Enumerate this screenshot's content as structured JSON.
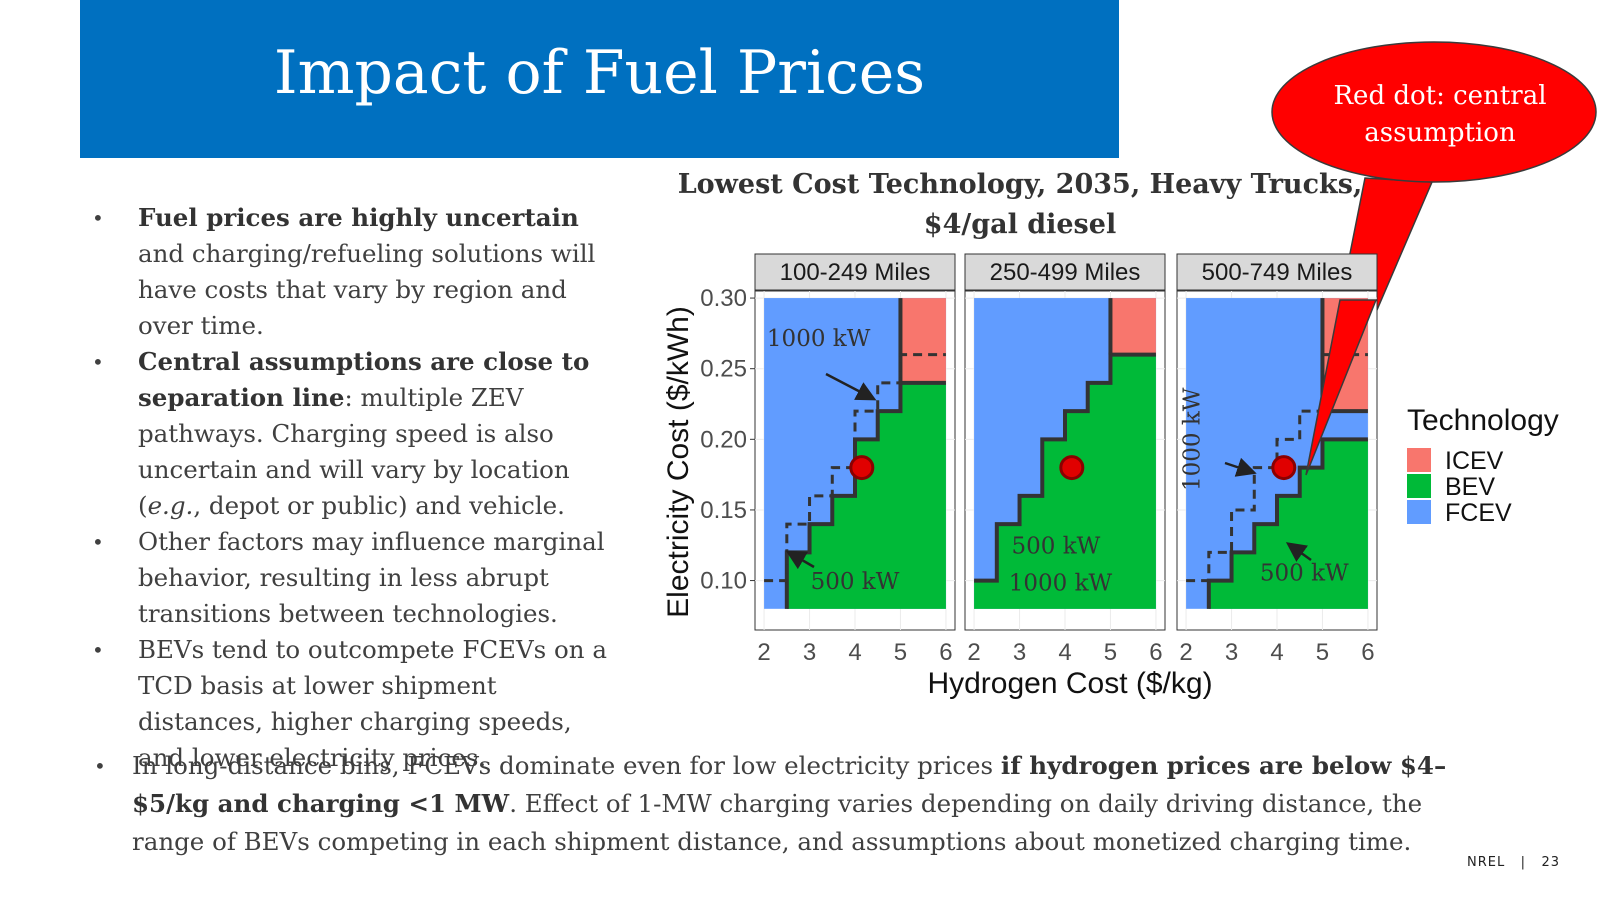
{
  "slide": {
    "title": "Impact of Fuel Prices",
    "footer_org": "NREL",
    "footer_sep": "|",
    "page_number": "23",
    "banner_color": "#0070c0"
  },
  "bullets": [
    {
      "bold": "Fuel prices are highly uncertain",
      "text": " and charging/refueling solutions will have costs that vary by region and over time."
    },
    {
      "bold": "Central assumptions are close to separation line",
      "text": ": multiple ZEV pathways. Charging speed is also uncertain and will vary by location ("
    },
    {
      "bold": "",
      "text": "Other factors may influence marginal behavior, resulting in less abrupt transitions between technologies."
    },
    {
      "bold": "",
      "text": "BEVs tend to outcompete FCEVs on a TCD basis at lower shipment distances, higher charging speeds, and lower electricity prices."
    }
  ],
  "bullet2_italic": "e.g.",
  "bullet2_tail": ", depot or public) and vehicle.",
  "bottom_bullet": {
    "pre": "In long-distance bins, FCEVs dominate even for low electricity prices ",
    "bold1": "if hydrogen prices are below $4–$5/kg and charging <1 MW",
    "post": ". Effect of 1-MW charging varies depending on daily driving distance, the range of BEVs competing in each shipment distance, and assumptions about monetized charging time."
  },
  "callout": {
    "text_line1": "Red dot: central",
    "text_line2": "assumption",
    "fill": "#ff0000"
  },
  "chart_data": {
    "type": "heatmap",
    "title_line1": "Lowest Cost Technology, 2035, Heavy Trucks,",
    "title_line2": "$4/gal diesel",
    "xlabel": "Hydrogen Cost ($/kg)",
    "ylabel": "Electricity Cost ($/kWh)",
    "xlim": [
      1.8,
      6.2
    ],
    "ylim": [
      0.065,
      0.305
    ],
    "x_ticks": [
      2,
      3,
      4,
      5,
      6
    ],
    "y_ticks": [
      0.1,
      0.15,
      0.2,
      0.25,
      0.3
    ],
    "y_tick_labels": [
      "0.10",
      "0.15",
      "0.20",
      "0.25",
      "0.30"
    ],
    "legend": {
      "title": "Technology",
      "entries": [
        {
          "label": "ICEV",
          "color": "#f8766d"
        },
        {
          "label": "BEV",
          "color": "#00ba38"
        },
        {
          "label": "FCEV",
          "color": "#619cff"
        }
      ]
    },
    "central_assumption": {
      "hydrogen": 4.15,
      "electricity": 0.18,
      "color": "#e00000"
    },
    "panels": [
      {
        "label": "100-249 Miles",
        "fcev_bev_boundary": [
          [
            2.5,
            0.08
          ],
          [
            2.5,
            0.12
          ],
          [
            3.0,
            0.12
          ],
          [
            3.0,
            0.14
          ],
          [
            3.5,
            0.14
          ],
          [
            3.5,
            0.16
          ],
          [
            4.0,
            0.16
          ],
          [
            4.0,
            0.2
          ],
          [
            4.5,
            0.2
          ],
          [
            4.5,
            0.22
          ],
          [
            5.0,
            0.22
          ],
          [
            5.0,
            0.24
          ],
          [
            6.0,
            0.24
          ]
        ],
        "icev_boundary": [
          [
            5.0,
            0.3
          ],
          [
            5.0,
            0.24
          ]
        ],
        "dashed_boundary": [
          [
            2.0,
            0.1
          ],
          [
            2.5,
            0.1
          ],
          [
            2.5,
            0.14
          ],
          [
            3.0,
            0.14
          ],
          [
            3.0,
            0.16
          ],
          [
            3.5,
            0.16
          ],
          [
            3.5,
            0.18
          ],
          [
            4.0,
            0.18
          ],
          [
            4.0,
            0.22
          ],
          [
            4.5,
            0.22
          ],
          [
            4.5,
            0.24
          ],
          [
            5.0,
            0.24
          ],
          [
            5.0,
            0.26
          ],
          [
            6.0,
            0.26
          ]
        ],
        "annotations": [
          {
            "text": "1000 kW",
            "x": 3.2,
            "y": 0.266
          },
          {
            "text": "500 kW",
            "x": 4.0,
            "y": 0.094
          }
        ]
      },
      {
        "label": "250-499 Miles",
        "fcev_bev_boundary": [
          [
            2.0,
            0.1
          ],
          [
            2.5,
            0.1
          ],
          [
            2.5,
            0.14
          ],
          [
            3.0,
            0.14
          ],
          [
            3.0,
            0.16
          ],
          [
            3.5,
            0.16
          ],
          [
            3.5,
            0.2
          ],
          [
            4.0,
            0.2
          ],
          [
            4.0,
            0.22
          ],
          [
            4.5,
            0.22
          ],
          [
            4.5,
            0.24
          ],
          [
            5.0,
            0.24
          ],
          [
            5.0,
            0.26
          ],
          [
            6.0,
            0.26
          ]
        ],
        "icev_boundary": [
          [
            5.0,
            0.3
          ],
          [
            5.0,
            0.26
          ]
        ],
        "dashed_boundary": [],
        "annotations": [
          {
            "text": "500 kW",
            "x": 3.8,
            "y": 0.119
          },
          {
            "text": "1000 kW",
            "x": 3.9,
            "y": 0.093
          }
        ]
      },
      {
        "label": "500-749 Miles",
        "fcev_bev_boundary": [
          [
            2.5,
            0.08
          ],
          [
            2.5,
            0.1
          ],
          [
            3.0,
            0.1
          ],
          [
            3.0,
            0.12
          ],
          [
            3.5,
            0.12
          ],
          [
            3.5,
            0.14
          ],
          [
            4.0,
            0.14
          ],
          [
            4.0,
            0.16
          ],
          [
            4.5,
            0.16
          ],
          [
            4.5,
            0.18
          ],
          [
            5.0,
            0.18
          ],
          [
            5.0,
            0.2
          ],
          [
            6.0,
            0.2
          ]
        ],
        "icev_boundary": [
          [
            5.0,
            0.3
          ],
          [
            5.0,
            0.22
          ],
          [
            6.0,
            0.22
          ]
        ],
        "dashed_boundary": [
          [
            2.0,
            0.1
          ],
          [
            2.5,
            0.1
          ],
          [
            2.5,
            0.12
          ],
          [
            3.0,
            0.12
          ],
          [
            3.0,
            0.15
          ],
          [
            3.5,
            0.15
          ],
          [
            3.5,
            0.18
          ],
          [
            4.0,
            0.18
          ],
          [
            4.0,
            0.2
          ],
          [
            4.5,
            0.2
          ],
          [
            4.5,
            0.22
          ],
          [
            5.0,
            0.22
          ],
          [
            5.0,
            0.26
          ],
          [
            6.0,
            0.26
          ]
        ],
        "annotations": [
          {
            "text": "1000 kW",
            "x": 2.3,
            "y": 0.2,
            "vertical": true
          },
          {
            "text": "500 kW",
            "x": 4.6,
            "y": 0.1
          }
        ]
      }
    ]
  }
}
